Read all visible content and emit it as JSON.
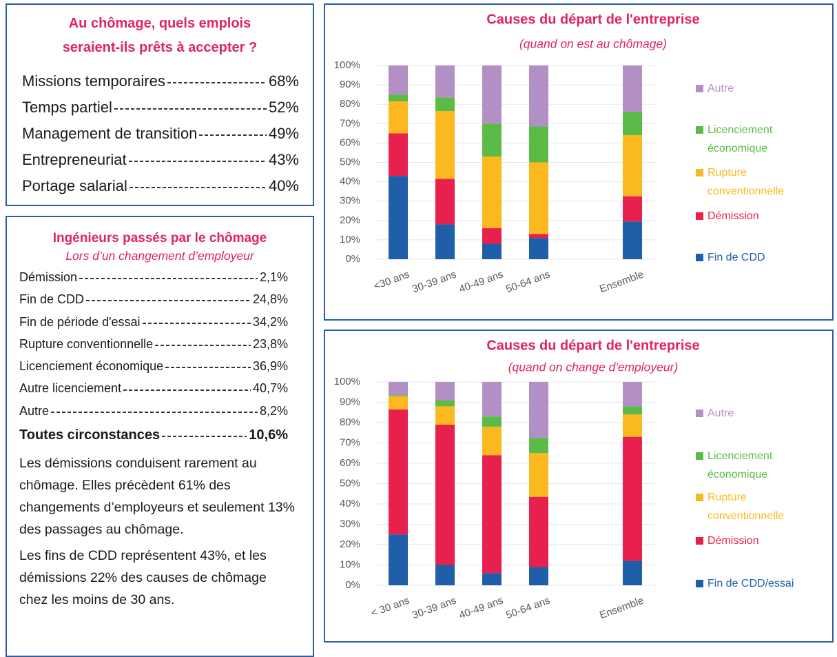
{
  "panel1": {
    "title": "Au chômage, quels emplois seraient-ils prêts à accepter ?",
    "items": [
      {
        "label": "Missions temporaires",
        "value": "68%"
      },
      {
        "label": "Temps partiel",
        "value": "52%"
      },
      {
        "label": "Management de transition",
        "value": "49%"
      },
      {
        "label": "Entrepreneuriat",
        "value": "43%"
      },
      {
        "label": "Portage salarial",
        "value": "40%"
      }
    ]
  },
  "panel2": {
    "title": "Ingénieurs passés par le chômage",
    "subtitle": "Lors d’un changement d’employeur",
    "items": [
      {
        "label": "Démission",
        "value": "2,1%"
      },
      {
        "label": "Fin de CDD",
        "value": "24,8%"
      },
      {
        "label": "Fin de période d'essai",
        "value": "34,2%"
      },
      {
        "label": "Rupture conventionnelle",
        "value": "23,8%"
      },
      {
        "label": "Licenciement économique",
        "value": "36,9%"
      },
      {
        "label": "Autre licenciement",
        "value": "40,7%"
      },
      {
        "label": "Autre",
        "value": "8,2%"
      }
    ],
    "total": {
      "label": "Toutes circonstances",
      "value": "10,6%"
    },
    "paragraphs": [
      "Les démissions conduisent rarement au chômage. Elles précèdent 61% des changements d’employeurs et seulement 13% des passages au chômage.",
      "Les fins de CDD représentent 43%, et les démissions 22% des causes de chômage chez les moins de 30 ans."
    ]
  },
  "chart_data": [
    {
      "type": "stacked_bar",
      "title": "Causes du départ de l'entreprise",
      "subtitle": "(quand on est au chômage)",
      "categories": [
        "<30 ans",
        "30-39 ans",
        "40-49 ans",
        "50-64 ans",
        null,
        "Ensemble"
      ],
      "series": [
        {
          "name": "Fin de CDD",
          "color": "#1f5ea8",
          "values": [
            43,
            18,
            8,
            11,
            null,
            19.5
          ]
        },
        {
          "name": "Démission",
          "color": "#e8204d",
          "values": [
            22,
            23.5,
            8,
            2,
            null,
            13
          ]
        },
        {
          "name": "Rupture conventionnelle",
          "color": "#fbb81f",
          "values": [
            16.5,
            35,
            37,
            37,
            null,
            31.5
          ]
        },
        {
          "name": "Licenciement économique",
          "color": "#5cbb46",
          "values": [
            3.5,
            7,
            17,
            18.5,
            null,
            12
          ]
        },
        {
          "name": "Autre",
          "color": "#b28fc4",
          "values": [
            15,
            16.5,
            30,
            31.5,
            null,
            24
          ]
        }
      ],
      "ylim": [
        0,
        100
      ],
      "yticks": [
        {
          "value": 0,
          "label": "0%"
        },
        {
          "value": 10,
          "label": "10%"
        },
        {
          "value": 20,
          "label": "20%"
        },
        {
          "value": 30,
          "label": "30%"
        },
        {
          "value": 40,
          "label": "40%"
        },
        {
          "value": 50,
          "label": "50%"
        },
        {
          "value": 60,
          "label": "60%"
        },
        {
          "value": 70,
          "label": "70%"
        },
        {
          "value": 80,
          "label": "80%"
        },
        {
          "value": 90,
          "label": "90%"
        },
        {
          "value": 100,
          "label": "100%"
        }
      ],
      "grid": true,
      "legend": "right"
    },
    {
      "type": "stacked_bar",
      "title": "Causes du départ de l'entreprise",
      "subtitle": "(quand on change d'employeur)",
      "categories": [
        "< 30 ans",
        "30-39 ans",
        "40-49 ans",
        "50-64 ans",
        null,
        "Ensemble"
      ],
      "series": [
        {
          "name": "Fin de CDD/essai",
          "color": "#1f5ea8",
          "values": [
            25,
            10,
            6,
            9,
            null,
            12
          ]
        },
        {
          "name": "Démission",
          "color": "#e8204d",
          "values": [
            61.5,
            69,
            58,
            34.5,
            null,
            61
          ]
        },
        {
          "name": "Rupture conventionnelle",
          "color": "#fbb81f",
          "values": [
            6.5,
            9,
            14,
            21.5,
            null,
            11
          ]
        },
        {
          "name": "Licenciement économique",
          "color": "#5cbb46",
          "values": [
            0.5,
            3,
            5,
            7.5,
            null,
            4
          ]
        },
        {
          "name": "Autre",
          "color": "#b28fc4",
          "values": [
            6.5,
            9,
            17,
            27.5,
            null,
            12
          ]
        }
      ],
      "ylim": [
        0,
        100
      ],
      "yticks": [
        {
          "value": 0,
          "label": "0%"
        },
        {
          "value": 10,
          "label": "10%"
        },
        {
          "value": 20,
          "label": "20%"
        },
        {
          "value": 30,
          "label": "30%"
        },
        {
          "value": 40,
          "label": "40%"
        },
        {
          "value": 50,
          "label": "50%"
        },
        {
          "value": 60,
          "label": "60%"
        },
        {
          "value": 70,
          "label": "70%"
        },
        {
          "value": 80,
          "label": "80%"
        },
        {
          "value": 90,
          "label": "90%"
        },
        {
          "value": 100,
          "label": "100%"
        }
      ],
      "grid": true,
      "legend": "right"
    }
  ]
}
